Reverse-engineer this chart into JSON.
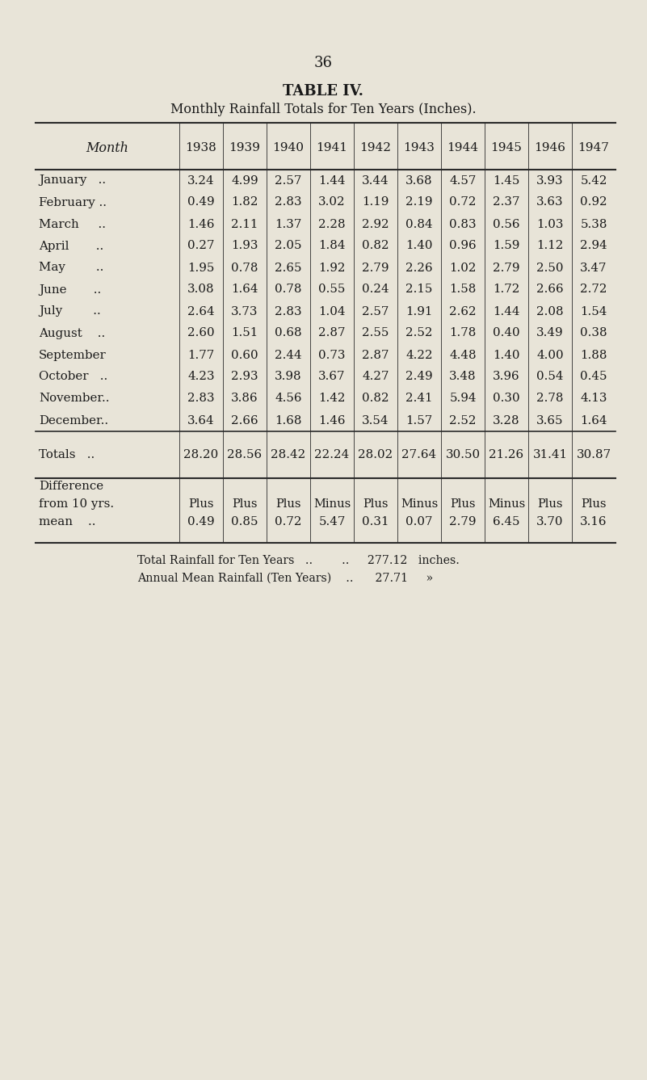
{
  "page_number": "36",
  "title_line1": "TABLE IV.",
  "title_line2": "Monthly Rainfall Totals for Ten Years (Inches).",
  "background_color": "#e8e4d8",
  "header_row": [
    "Month",
    "1938",
    "1939",
    "1940",
    "1941",
    "1942",
    "1943",
    "1944",
    "1945",
    "1946",
    "1947"
  ],
  "data_rows": [
    [
      "January   ..",
      "3.24",
      "4.99",
      "2.57",
      "1.44",
      "3.44",
      "3.68",
      "4.57",
      "1.45",
      "3.93",
      "5.42"
    ],
    [
      "February ..",
      "0.49",
      "1.82",
      "2.83",
      "3.02",
      "1.19",
      "2.19",
      "0.72",
      "2.37",
      "3.63",
      "0.92"
    ],
    [
      "March     ..",
      "1.46",
      "2.11",
      "1.37",
      "2.28",
      "2.92",
      "0.84",
      "0.83",
      "0.56",
      "1.03",
      "5.38"
    ],
    [
      "April       ..",
      "0.27",
      "1.93",
      "2.05",
      "1.84",
      "0.82",
      "1.40",
      "0.96",
      "1.59",
      "1.12",
      "2.94"
    ],
    [
      "May        ..",
      "1.95",
      "0.78",
      "2.65",
      "1.92",
      "2.79",
      "2.26",
      "1.02",
      "2.79",
      "2.50",
      "3.47"
    ],
    [
      "June       ..",
      "3.08",
      "1.64",
      "0.78",
      "0.55",
      "0.24",
      "2.15",
      "1.58",
      "1.72",
      "2.66",
      "2.72"
    ],
    [
      "July        ..",
      "2.64",
      "3.73",
      "2.83",
      "1.04",
      "2.57",
      "1.91",
      "2.62",
      "1.44",
      "2.08",
      "1.54"
    ],
    [
      "August    ..",
      "2.60",
      "1.51",
      "0.68",
      "2.87",
      "2.55",
      "2.52",
      "1.78",
      "0.40",
      "3.49",
      "0.38"
    ],
    [
      "September",
      "1.77",
      "0.60",
      "2.44",
      "0.73",
      "2.87",
      "4.22",
      "4.48",
      "1.40",
      "4.00",
      "1.88"
    ],
    [
      "October   ..",
      "4.23",
      "2.93",
      "3.98",
      "3.67",
      "4.27",
      "2.49",
      "3.48",
      "3.96",
      "0.54",
      "0.45"
    ],
    [
      "November..",
      "2.83",
      "3.86",
      "4.56",
      "1.42",
      "0.82",
      "2.41",
      "5.94",
      "0.30",
      "2.78",
      "4.13"
    ],
    [
      "December..",
      "3.64",
      "2.66",
      "1.68",
      "1.46",
      "3.54",
      "1.57",
      "2.52",
      "3.28",
      "3.65",
      "1.64"
    ]
  ],
  "totals_row": [
    "Totals   ..",
    "28.20",
    "28.56",
    "28.42",
    "22.24",
    "28.02",
    "27.64",
    "30.50",
    "21.26",
    "31.41",
    "30.87"
  ],
  "diff_line1_label": "Difference",
  "diff_line2_label": "from 10 yrs.",
  "diff_line2_vals": [
    "Plus",
    "Plus",
    "Plus",
    "Minus",
    "Plus",
    "Minus",
    "Plus",
    "Minus",
    "Plus",
    "Plus"
  ],
  "diff_line3_label": "mean    ..",
  "diff_line3_vals": [
    "0.49",
    "0.85",
    "0.72",
    "5.47",
    "0.31",
    "0.07",
    "2.79",
    "6.45",
    "3.70",
    "3.16"
  ],
  "footer_line1": "Total Rainfall for Ten Years   ..        ..     277.12   inches.",
  "footer_line2": "Annual Mean Rainfall (Ten Years)    ..      27.71     »",
  "text_color": "#1a1a1a",
  "line_color": "#2a2a2a"
}
